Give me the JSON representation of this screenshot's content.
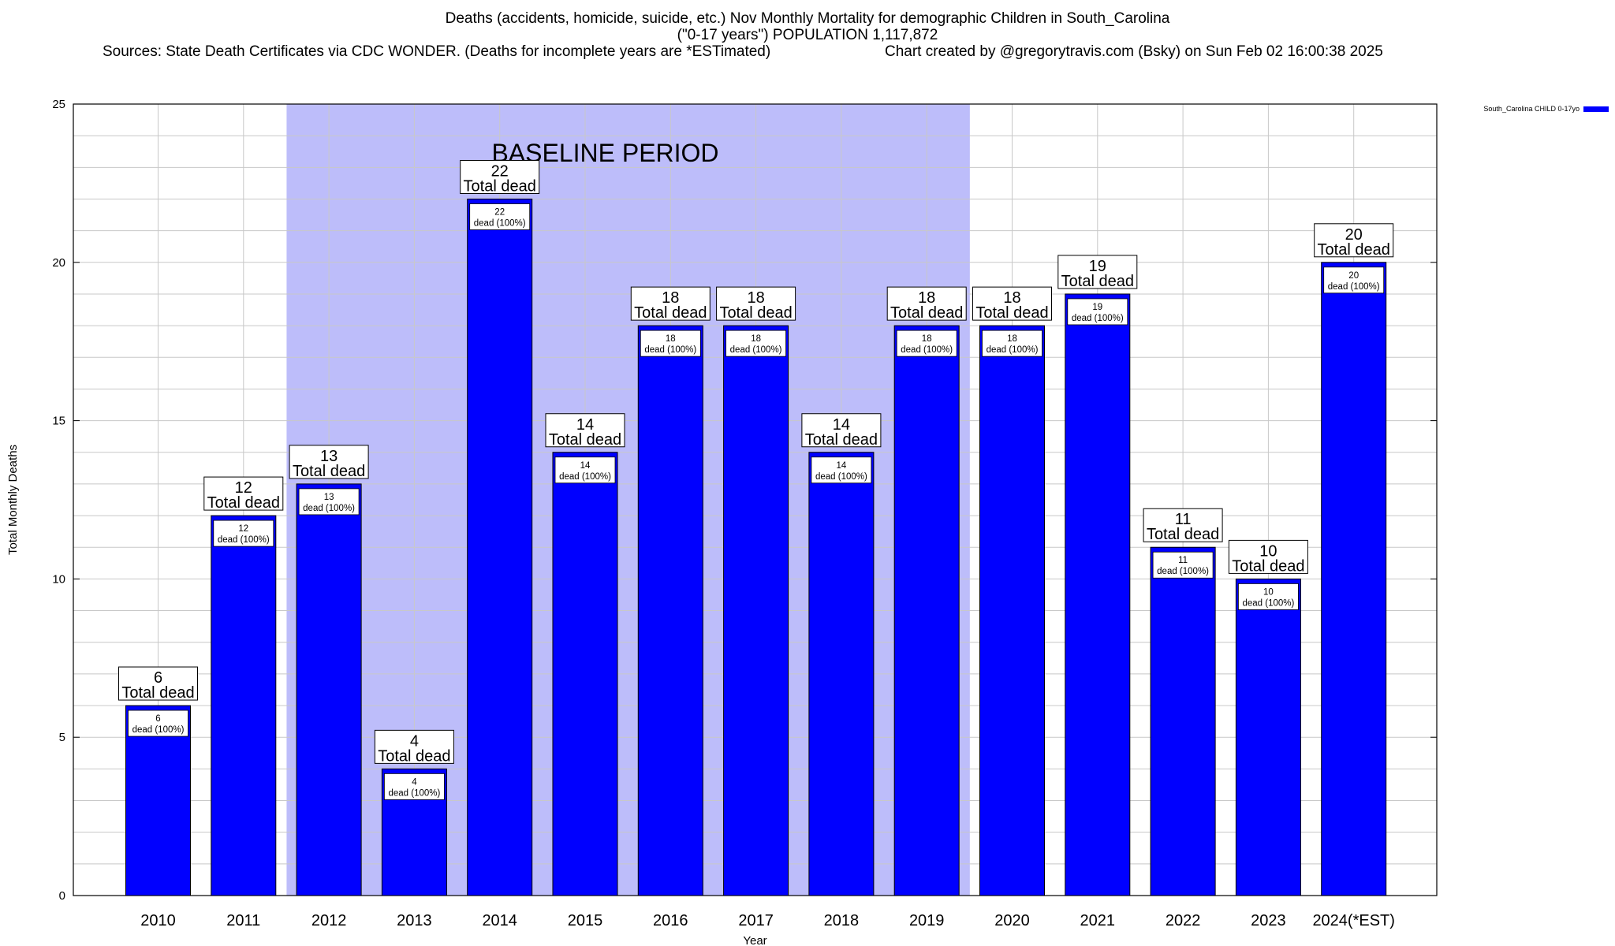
{
  "header": {
    "title": "Deaths (accidents, homicide, suicide, etc.) Nov Monthly Mortality for demographic Children in South_Carolina",
    "subtitle": "(\"0-17 years\") POPULATION 1,117,872",
    "sources": "Sources: State Death Certificates via CDC WONDER. (Deaths for incomplete years are *ESTimated)",
    "credit": "Chart created by @gregorytravis.com (Bsky) on Sun Feb 02 16:00:38 2025"
  },
  "chart_data": {
    "type": "bar",
    "categories": [
      "2010",
      "2011",
      "2012",
      "2013",
      "2014",
      "2015",
      "2016",
      "2017",
      "2018",
      "2019",
      "2020",
      "2021",
      "2022",
      "2023",
      "2024(*EST)"
    ],
    "series": [
      {
        "name": "South_Carolina CHILD 0-17yo",
        "values": [
          6,
          12,
          13,
          4,
          22,
          14,
          18,
          18,
          14,
          18,
          18,
          19,
          11,
          10,
          20
        ]
      }
    ],
    "ylabel": "Total Monthly Deaths",
    "xlabel": "Year",
    "ylim": [
      0,
      25
    ],
    "yticks": [
      0,
      5,
      10,
      15,
      20,
      25
    ],
    "grid": true,
    "legend": "top-right",
    "baseline": {
      "label": "BASELINE PERIOD",
      "start": "2012",
      "end": "2019"
    },
    "data_label_top_suffix": "Total dead",
    "data_label_inner_suffix": "dead (100%)",
    "colors": {
      "bar": "#0000ff",
      "bar_edge": "#000000",
      "baseline_fill": "#bdbdfa",
      "grid": "#c8c8c8"
    }
  }
}
